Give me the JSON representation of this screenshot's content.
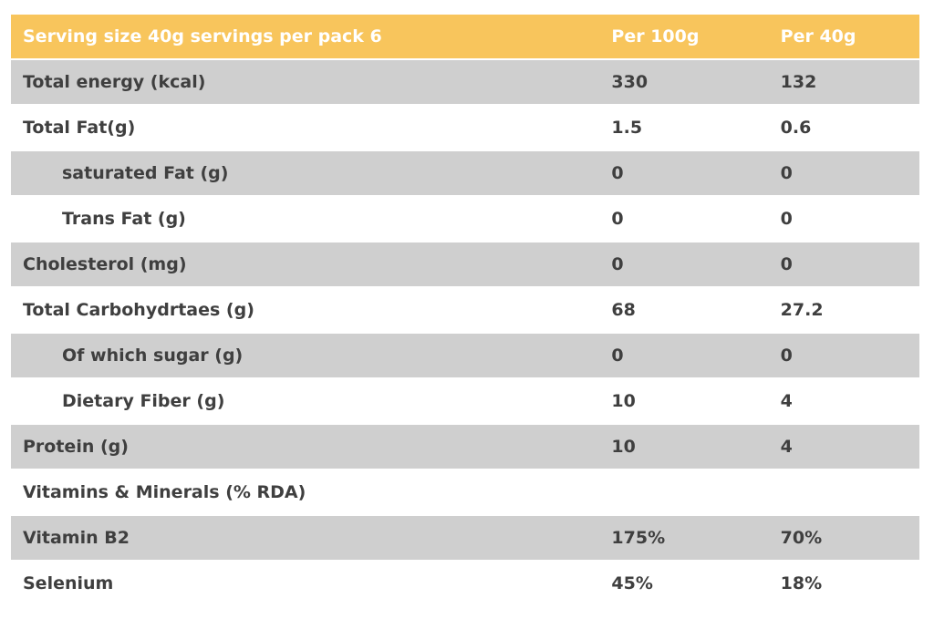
{
  "table": {
    "header": {
      "label": "Serving size 40g servings per pack 6",
      "per100g": "Per 100g",
      "per40g": "Per 40g"
    },
    "rows": [
      {
        "label": "Total energy (kcal)",
        "per100g": "330",
        "per40g": "132",
        "indent": false
      },
      {
        "label": "Total Fat(g)",
        "per100g": "1.5",
        "per40g": "0.6",
        "indent": false
      },
      {
        "label": "saturated Fat (g)",
        "per100g": "0",
        "per40g": "0",
        "indent": true
      },
      {
        "label": "Trans Fat (g)",
        "per100g": "0",
        "per40g": "0",
        "indent": true
      },
      {
        "label": "Cholesterol (mg)",
        "per100g": "0",
        "per40g": "0",
        "indent": false
      },
      {
        "label": "Total Carbohydrtaes (g)",
        "per100g": "68",
        "per40g": "27.2",
        "indent": false
      },
      {
        "label": "Of which sugar (g)",
        "per100g": "0",
        "per40g": "0",
        "indent": true
      },
      {
        "label": "Dietary Fiber (g)",
        "per100g": "10",
        "per40g": "4",
        "indent": true
      },
      {
        "label": "Protein (g)",
        "per100g": "10",
        "per40g": "4",
        "indent": false
      },
      {
        "label": "Vitamins & Minerals (% RDA)",
        "per100g": "",
        "per40g": "",
        "indent": false
      },
      {
        "label": "Vitamin B2",
        "per100g": "175%",
        "per40g": "70%",
        "indent": false
      },
      {
        "label": "Selenium",
        "per100g": "45%",
        "per40g": "18%",
        "indent": false
      }
    ],
    "colors": {
      "header_bg": "#f8c55c",
      "header_text": "#ffffff",
      "stripe_bg": "#cfcfcf",
      "row_bg": "#ffffff",
      "text": "#3f3f3f"
    }
  }
}
